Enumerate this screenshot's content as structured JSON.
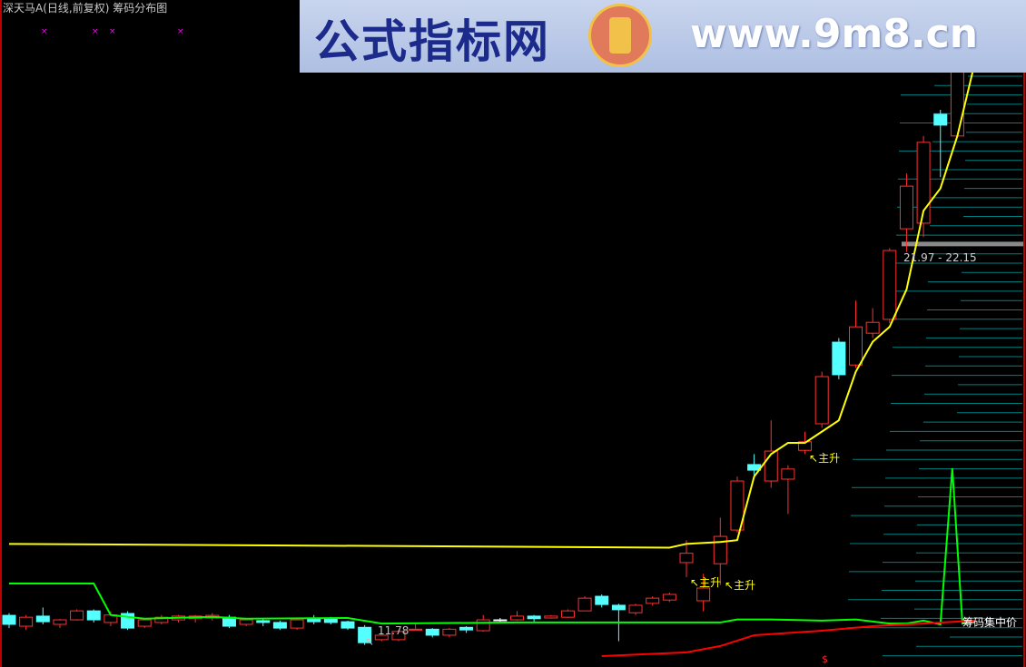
{
  "header": {
    "title": "深天马A(日线,前复权) 筹码分布图"
  },
  "watermark": {
    "site_name": "公式指标网",
    "url": "www.9m8.cn"
  },
  "annotations": {
    "low_price": "11.78",
    "chip_range": "21.97 - 22.15",
    "main_rise": "主升",
    "chip_concentration": "筹码集中价",
    "dollar_mark": "$",
    "arrow": "↖"
  },
  "colors": {
    "up": "#ff3030",
    "down": "#54ffff",
    "yellow_line": "#ffff00",
    "green_line": "#00ff00",
    "red_line": "#ff0000",
    "chip_lines": "#008080",
    "marker": "#ff00ff"
  },
  "chart_data": {
    "type": "candlestick",
    "title": "深天马A(日线,前复权) 筹码分布图",
    "candles_ohlc": [
      [
        12.19,
        11.95,
        12.25,
        11.85
      ],
      [
        11.9,
        12.14,
        12.2,
        11.8
      ],
      [
        12.17,
        12.02,
        12.4,
        11.95
      ],
      [
        11.95,
        12.07,
        12.1,
        11.85
      ],
      [
        12.07,
        12.31,
        12.35,
        12.05
      ],
      [
        12.31,
        12.07,
        12.35,
        12.0
      ],
      [
        12.0,
        12.2,
        12.3,
        11.9
      ],
      [
        12.24,
        11.85,
        12.3,
        11.8
      ],
      [
        11.9,
        12.07,
        12.1,
        11.85
      ],
      [
        12.0,
        12.14,
        12.2,
        11.95
      ],
      [
        12.07,
        12.17,
        12.2,
        12.0
      ],
      [
        12.1,
        12.17,
        12.2,
        12.0
      ],
      [
        12.12,
        12.19,
        12.25,
        12.05
      ],
      [
        12.14,
        11.9,
        12.2,
        11.85
      ],
      [
        11.95,
        12.07,
        12.1,
        11.9
      ],
      [
        12.05,
        12.0,
        12.1,
        11.9
      ],
      [
        12.0,
        11.85,
        12.05,
        11.8
      ],
      [
        11.85,
        12.07,
        12.12,
        11.8
      ],
      [
        12.12,
        12.02,
        12.2,
        11.95
      ],
      [
        12.1,
        12.0,
        12.15,
        11.95
      ],
      [
        12.02,
        11.85,
        12.05,
        11.8
      ],
      [
        11.87,
        11.46,
        11.93,
        11.4
      ],
      [
        11.54,
        11.66,
        11.7,
        11.5
      ],
      [
        11.54,
        11.76,
        11.8,
        11.5
      ],
      [
        11.8,
        11.82,
        11.98,
        11.8
      ],
      [
        11.82,
        11.66,
        11.85,
        11.6
      ],
      [
        11.66,
        11.82,
        11.85,
        11.6
      ],
      [
        11.87,
        11.8,
        11.9,
        11.72
      ],
      [
        11.78,
        12.07,
        12.2,
        11.75
      ],
      [
        12.07,
        12.07,
        12.12,
        12.02
      ],
      [
        12.07,
        12.17,
        12.3,
        12.05
      ],
      [
        12.17,
        12.1,
        12.2,
        12.02
      ],
      [
        12.12,
        12.17,
        12.2,
        12.1
      ],
      [
        12.14,
        12.31,
        12.35,
        12.12
      ],
      [
        12.31,
        12.65,
        12.7,
        12.3
      ],
      [
        12.7,
        12.48,
        12.75,
        12.4
      ],
      [
        12.46,
        12.34,
        12.5,
        11.5
      ],
      [
        12.26,
        12.46,
        12.5,
        12.2
      ],
      [
        12.51,
        12.65,
        12.7,
        12.45
      ],
      [
        12.6,
        12.75,
        12.8,
        12.55
      ],
      [
        13.6,
        13.85,
        14.2,
        13.21
      ],
      [
        12.58,
        12.92,
        13.3,
        12.3
      ],
      [
        13.57,
        14.3,
        14.8,
        13.0
      ],
      [
        14.47,
        15.78,
        15.9,
        14.4
      ],
      [
        16.22,
        16.07,
        16.5,
        15.9
      ],
      [
        15.78,
        16.58,
        17.4,
        15.6
      ],
      [
        15.83,
        16.1,
        16.2,
        14.9
      ],
      [
        16.6,
        16.83,
        17.1,
        16.5
      ],
      [
        17.31,
        18.57,
        18.7,
        17.2
      ],
      [
        19.49,
        18.62,
        19.6,
        18.5
      ],
      [
        18.88,
        19.9,
        20.6,
        18.8
      ],
      [
        19.73,
        20.02,
        20.4,
        19.6
      ],
      [
        20.1,
        21.94,
        22.0,
        20.0
      ],
      [
        22.52,
        23.66,
        24.0,
        21.9
      ],
      [
        22.67,
        24.83,
        25.0,
        22.3
      ],
      [
        25.58,
        25.29,
        25.7,
        23.9
      ],
      [
        25.0,
        27.0,
        27.5,
        25.0
      ]
    ],
    "lines": [
      {
        "color": "yellow",
        "points": [
          [
            0,
            14.1
          ],
          [
            39,
            14.0
          ],
          [
            40,
            14.1
          ],
          [
            42,
            14.15
          ],
          [
            43,
            14.2
          ],
          [
            44,
            15.9
          ],
          [
            45,
            16.5
          ],
          [
            46,
            16.8
          ],
          [
            47,
            16.8
          ],
          [
            48,
            17.1
          ],
          [
            49,
            17.4
          ],
          [
            50,
            18.7
          ],
          [
            51,
            19.5
          ],
          [
            52,
            19.9
          ],
          [
            53,
            20.9
          ],
          [
            54,
            23.0
          ],
          [
            55,
            23.6
          ],
          [
            56,
            25.0
          ],
          [
            57,
            26.9
          ]
        ]
      },
      {
        "color": "green",
        "points": [
          [
            0,
            13.04
          ],
          [
            5,
            13.04
          ],
          [
            6,
            12.2
          ],
          [
            8,
            12.1
          ],
          [
            12,
            12.15
          ],
          [
            14,
            12.1
          ],
          [
            20,
            12.12
          ],
          [
            22,
            11.97
          ],
          [
            30,
            12.0
          ],
          [
            42,
            12.0
          ],
          [
            43,
            12.08
          ],
          [
            45,
            12.08
          ],
          [
            48,
            12.05
          ],
          [
            50,
            12.08
          ],
          [
            52,
            11.97
          ],
          [
            53,
            11.97
          ],
          [
            54,
            12.05
          ],
          [
            55,
            11.95
          ],
          [
            55.7,
            16.12
          ],
          [
            56.3,
            11.97
          ],
          [
            57,
            12.02
          ]
        ]
      },
      {
        "color": "red",
        "points": [
          [
            35,
            11.1
          ],
          [
            40,
            11.2
          ],
          [
            42,
            11.37
          ],
          [
            44,
            11.66
          ],
          [
            48,
            11.78
          ],
          [
            51,
            11.9
          ],
          [
            54,
            11.97
          ],
          [
            57,
            12.05
          ]
        ]
      }
    ],
    "markers": {
      "chip_concentration_range": [
        21.97,
        22.15
      ],
      "low_label": 11.78,
      "main_rise_at": [
        40,
        42,
        47
      ]
    }
  }
}
